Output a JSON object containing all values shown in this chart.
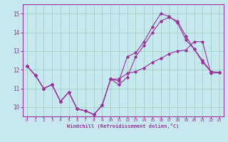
{
  "xlabel": "Windchill (Refroidissement éolien,°C)",
  "background_color": "#c8e8f0",
  "line_color": "#993399",
  "grid_color": "#99ccbb",
  "xlim": [
    -0.5,
    23.5
  ],
  "ylim": [
    9.5,
    15.5
  ],
  "xticks": [
    0,
    1,
    2,
    3,
    4,
    5,
    6,
    7,
    8,
    9,
    10,
    11,
    12,
    13,
    14,
    15,
    16,
    17,
    18,
    19,
    20,
    21,
    22,
    23
  ],
  "yticks": [
    10,
    11,
    12,
    13,
    14,
    15
  ],
  "series1_x": [
    0,
    1,
    2,
    3,
    4,
    5,
    6,
    7,
    8,
    9,
    10,
    11,
    12,
    13,
    14,
    15,
    16,
    17,
    18,
    19,
    20,
    21,
    22,
    23
  ],
  "series1_y": [
    12.2,
    11.7,
    11.0,
    11.2,
    10.3,
    10.8,
    9.9,
    9.8,
    9.6,
    10.1,
    11.5,
    11.4,
    12.7,
    12.9,
    13.5,
    14.3,
    15.0,
    14.85,
    14.5,
    13.6,
    13.1,
    12.4,
    11.9,
    11.85
  ],
  "series2_x": [
    0,
    1,
    2,
    3,
    4,
    5,
    6,
    7,
    8,
    9,
    10,
    11,
    12,
    13,
    14,
    15,
    16,
    17,
    18,
    19,
    20,
    21,
    22,
    23
  ],
  "series2_y": [
    12.2,
    11.7,
    11.0,
    11.2,
    10.3,
    10.8,
    9.9,
    9.8,
    9.6,
    10.1,
    11.5,
    11.2,
    11.6,
    12.7,
    13.3,
    14.0,
    14.6,
    14.8,
    14.6,
    13.8,
    13.1,
    12.5,
    11.9,
    11.85
  ],
  "series3_x": [
    0,
    1,
    2,
    3,
    4,
    5,
    6,
    7,
    8,
    9,
    10,
    11,
    12,
    13,
    14,
    15,
    16,
    17,
    18,
    19,
    20,
    21,
    22,
    23
  ],
  "series3_y": [
    12.2,
    11.7,
    11.0,
    11.2,
    10.3,
    10.8,
    9.9,
    9.8,
    9.6,
    10.1,
    11.5,
    11.5,
    11.8,
    11.9,
    12.1,
    12.4,
    12.6,
    12.85,
    13.0,
    13.05,
    13.5,
    13.5,
    11.8,
    11.85
  ]
}
